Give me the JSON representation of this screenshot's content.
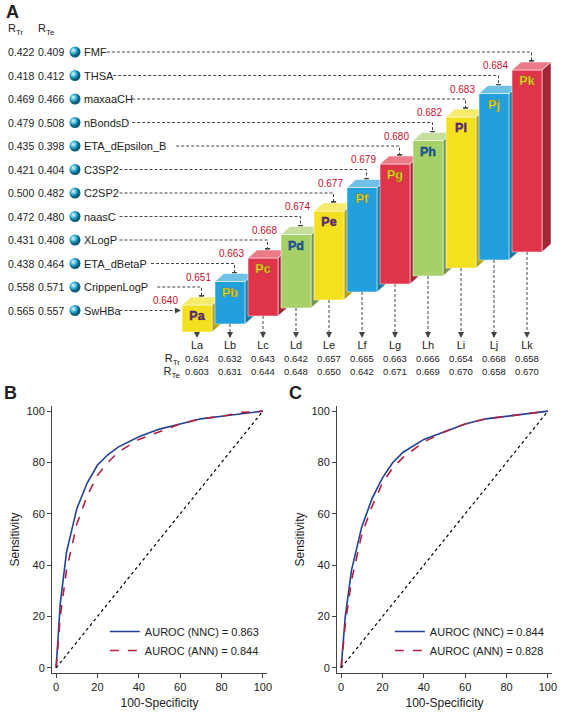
{
  "panel_a": {
    "letter": "A",
    "column_heads": [
      {
        "main": "R",
        "sub": "Tr"
      },
      {
        "main": "R",
        "sub": "Te"
      }
    ],
    "descriptors": [
      {
        "name": "FMF",
        "r_tr": "0.422",
        "r_te": "0.409"
      },
      {
        "name": "THSA",
        "r_tr": "0.418",
        "r_te": "0.412"
      },
      {
        "name": "maxaaCH",
        "r_tr": "0.469",
        "r_te": "0.466"
      },
      {
        "name": "nBondsD",
        "r_tr": "0.479",
        "r_te": "0.508"
      },
      {
        "name": "ETA_dEpsilon_B",
        "r_tr": "0.435",
        "r_te": "0.398"
      },
      {
        "name": "C3SP2",
        "r_tr": "0.421",
        "r_te": "0.404"
      },
      {
        "name": "C2SP2",
        "r_tr": "0.500",
        "r_te": "0.482"
      },
      {
        "name": "naasC",
        "r_tr": "0.472",
        "r_te": "0.480"
      },
      {
        "name": "XLogP",
        "r_tr": "0.431",
        "r_te": "0.408"
      },
      {
        "name": "ETA_dBetaP",
        "r_tr": "0.438",
        "r_te": "0.464"
      },
      {
        "name": "CrippenLogP",
        "r_tr": "0.558",
        "r_te": "0.571"
      },
      {
        "name": "SwHBa",
        "r_tr": "0.565",
        "r_te": "0.557"
      }
    ],
    "steps": [
      {
        "label": "Pa",
        "value": "0.640",
        "color": "#f3e01e",
        "label_color": "#6a2a8c",
        "level": "La",
        "r_tr": "0.624",
        "r_te": "0.603"
      },
      {
        "label": "Pb",
        "value": "0.651",
        "color": "#22a0dc",
        "label_color": "#f3e01e",
        "level": "Lb",
        "r_tr": "0.632",
        "r_te": "0.631"
      },
      {
        "label": "Pc",
        "value": "0.663",
        "color": "#e0344a",
        "label_color": "#f3e01e",
        "level": "Lc",
        "r_tr": "0.643",
        "r_te": "0.644"
      },
      {
        "label": "Pd",
        "value": "0.668",
        "color": "#a6d068",
        "label_color": "#1f5fb0",
        "level": "Ld",
        "r_tr": "0.642",
        "r_te": "0.648"
      },
      {
        "label": "Pe",
        "value": "0.674",
        "color": "#f3e01e",
        "label_color": "#6a2a8c",
        "level": "Le",
        "r_tr": "0.657",
        "r_te": "0.650"
      },
      {
        "label": "Pf",
        "value": "0.677",
        "color": "#22a0dc",
        "label_color": "#f3e01e",
        "level": "Lf",
        "r_tr": "0.665",
        "r_te": "0.642"
      },
      {
        "label": "Pg",
        "value": "0.679",
        "color": "#e0344a",
        "label_color": "#f3e01e",
        "level": "Lg",
        "r_tr": "0.663",
        "r_te": "0.671"
      },
      {
        "label": "Ph",
        "value": "0.680",
        "color": "#a6d068",
        "label_color": "#1f5fb0",
        "level": "Lh",
        "r_tr": "0.666",
        "r_te": "0.669"
      },
      {
        "label": "Pi",
        "value": "0.682",
        "color": "#f3e01e",
        "label_color": "#6a2a8c",
        "level": "Li",
        "r_tr": "0.654",
        "r_te": "0.670"
      },
      {
        "label": "Pj",
        "value": "0.683",
        "color": "#22a0dc",
        "label_color": "#f3e01e",
        "level": "Lj",
        "r_tr": "0.668",
        "r_te": "0.658"
      },
      {
        "label": "Pk",
        "value": "0.684",
        "color": "#e0344a",
        "label_color": "#f3e01e",
        "level": "Lk",
        "r_tr": "0.658",
        "r_te": "0.670"
      }
    ]
  },
  "chart_data": [
    {
      "letter": "B",
      "type": "line",
      "x_label": "100-Specificity",
      "y_label": "Sensitivity",
      "xlim": [
        -2,
        102
      ],
      "ylim": [
        -2,
        102
      ],
      "xticks": [
        0,
        20,
        40,
        60,
        80,
        100
      ],
      "yticks": [
        0,
        20,
        40,
        60,
        80,
        100
      ],
      "legend": "lower right",
      "series": [
        {
          "name": "AUROC (NNC) = 0.863",
          "color": "#23409a",
          "line_style": "solid",
          "x": [
            0,
            1,
            2,
            5,
            10,
            15,
            20,
            25,
            30,
            40,
            50,
            60,
            70,
            80,
            90,
            100
          ],
          "values": [
            0,
            15,
            25,
            45,
            62,
            72,
            79,
            83,
            86,
            90,
            93,
            95,
            97,
            98,
            99,
            100
          ]
        },
        {
          "name": "AUROC (ANN) = 0.844",
          "color": "#b3213d",
          "line_style": "dash",
          "x": [
            0,
            1,
            2,
            5,
            10,
            15,
            20,
            25,
            30,
            40,
            50,
            60,
            70,
            80,
            90,
            100
          ],
          "values": [
            0,
            11,
            20,
            38,
            56,
            67,
            75,
            80,
            84,
            89,
            92,
            95,
            97,
            98,
            99.5,
            100
          ]
        },
        {
          "color": "#000000",
          "line_style": "dot",
          "x": [
            0,
            100
          ],
          "values": [
            0,
            100
          ]
        }
      ]
    },
    {
      "letter": "C",
      "type": "line",
      "x_label": "100-Specificity",
      "y_label": "Sensitivity",
      "xlim": [
        -2,
        102
      ],
      "ylim": [
        -2,
        102
      ],
      "xticks": [
        0,
        20,
        40,
        60,
        80,
        100
      ],
      "yticks": [
        0,
        20,
        40,
        60,
        80,
        100
      ],
      "legend": "lower right",
      "series": [
        {
          "name": "AUROC (NNC) = 0.844",
          "color": "#23409a",
          "line_style": "solid",
          "x": [
            0,
            1,
            2,
            5,
            10,
            15,
            20,
            25,
            30,
            40,
            50,
            60,
            70,
            80,
            90,
            100
          ],
          "values": [
            0,
            11,
            20,
            38,
            55,
            66,
            74,
            80,
            84,
            89,
            92,
            95,
            97,
            98,
            99,
            100
          ]
        },
        {
          "name": "AUROC (ANN) = 0.828",
          "color": "#b3213d",
          "line_style": "dash",
          "x": [
            0,
            1,
            2,
            5,
            10,
            15,
            20,
            25,
            30,
            40,
            50,
            60,
            70,
            80,
            90,
            100
          ],
          "values": [
            0,
            9,
            17,
            34,
            52,
            63,
            72,
            78,
            82,
            88,
            92,
            95,
            97,
            98,
            99,
            100
          ]
        },
        {
          "color": "#000000",
          "line_style": "dot",
          "x": [
            0,
            100
          ],
          "values": [
            0,
            100
          ]
        }
      ]
    }
  ]
}
